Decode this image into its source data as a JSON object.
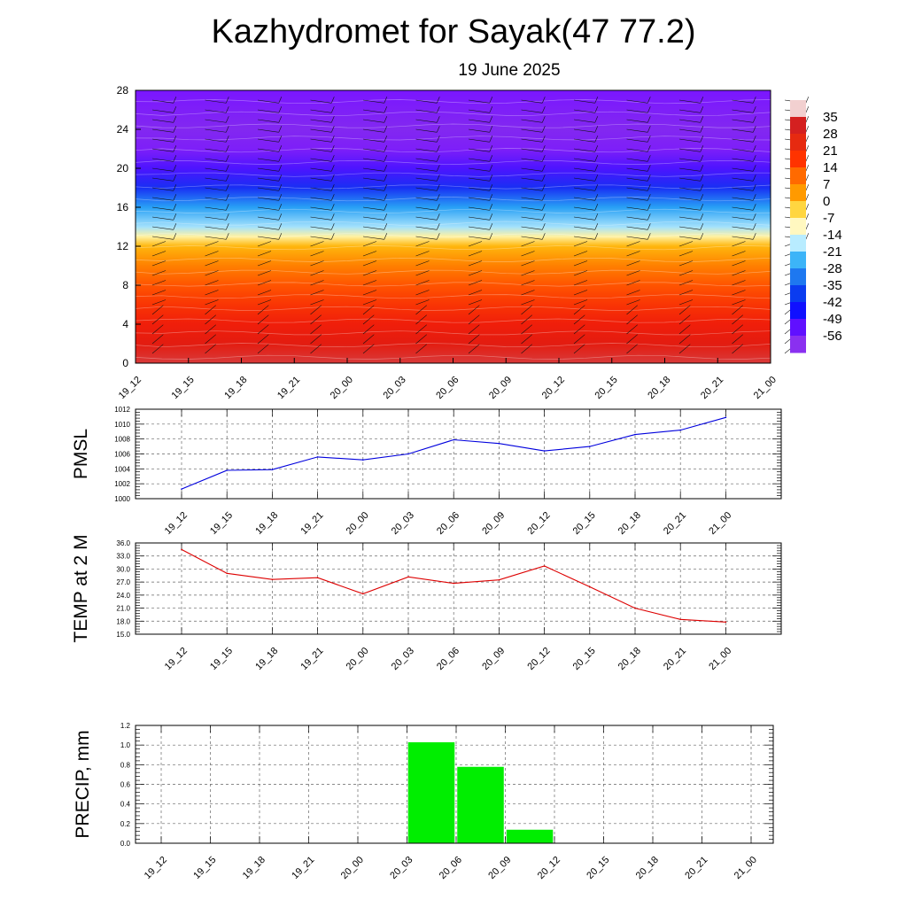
{
  "title": "Kazhydromet for Sayak(47 77.2)",
  "date": "19 June 2025",
  "colorbar": {
    "labels": [
      "35",
      "28",
      "21",
      "14",
      "7",
      "0",
      "-7",
      "-14",
      "-21",
      "-28",
      "-35",
      "-42",
      "-49",
      "-56"
    ],
    "colors": [
      "#f2d0d0",
      "#d42020",
      "#e62a10",
      "#ff3300",
      "#ff6a00",
      "#ff9a00",
      "#ffd640",
      "#fff8c0",
      "#b8ecff",
      "#3cb4f8",
      "#1e78f0",
      "#0a3cf0",
      "#1010ff",
      "#6010ff",
      "#8a30f0"
    ]
  },
  "chart_data": [
    {
      "type": "heatmap",
      "title": "",
      "xlabel": "",
      "ylabel": "",
      "x_ticks": [
        "19_12",
        "19_15",
        "19_18",
        "19_21",
        "20_00",
        "20_03",
        "20_06",
        "20_09",
        "20_12",
        "20_15",
        "20_18",
        "20_21",
        "21_00"
      ],
      "y_ticks": [
        "0",
        "4",
        "8",
        "12",
        "16",
        "20",
        "24",
        "28"
      ],
      "ylim": [
        0,
        28
      ],
      "z_range": [
        -56,
        35
      ],
      "levels": [
        0,
        2,
        4,
        6,
        8,
        10,
        12,
        13,
        14,
        16,
        18,
        20,
        22,
        24,
        26,
        28
      ],
      "temperature_by_level": [
        30,
        24,
        21,
        17,
        12,
        6,
        -1,
        -9,
        -18,
        -28,
        -40,
        -50,
        -58,
        -60,
        -58,
        -56
      ],
      "overlay": "wind barbs"
    },
    {
      "type": "line",
      "title": "",
      "ylabel": "PMSL",
      "x": [
        "19_12",
        "19_15",
        "19_18",
        "19_21",
        "20_00",
        "20_03",
        "20_06",
        "20_09",
        "20_12",
        "20_15",
        "20_18",
        "20_21",
        "21_00"
      ],
      "series": [
        {
          "values": [
            1001.3,
            1003.8,
            1003.9,
            1005.6,
            1005.2,
            1006.0,
            1007.9,
            1007.4,
            1006.4,
            1007.0,
            1008.6,
            1009.2,
            1010.9
          ]
        }
      ],
      "color": "#0000dd",
      "ylim": [
        1000,
        1012
      ],
      "y_ticks": [
        "1000",
        "1002",
        "1004",
        "1006",
        "1008",
        "1010",
        "1012"
      ],
      "grid": true
    },
    {
      "type": "line",
      "title": "",
      "ylabel": "TEMP at 2 M",
      "x": [
        "19_12",
        "19_15",
        "19_18",
        "19_21",
        "20_00",
        "20_03",
        "20_06",
        "20_09",
        "20_12",
        "20_15",
        "20_18",
        "20_21",
        "21_00"
      ],
      "series": [
        {
          "values": [
            34.5,
            29.0,
            27.6,
            28.0,
            24.3,
            28.2,
            26.7,
            27.5,
            30.7,
            25.9,
            21.0,
            18.4,
            17.8
          ]
        }
      ],
      "color": "#dd0000",
      "ylim": [
        15,
        36
      ],
      "y_ticks": [
        "15.0",
        "18.0",
        "21.0",
        "24.0",
        "27.0",
        "30.0",
        "33.0",
        "36.0"
      ],
      "grid": true
    },
    {
      "type": "bar",
      "title": "",
      "ylabel": "PRECIP, mm",
      "categories": [
        "19_12",
        "19_15",
        "19_18",
        "19_21",
        "20_00",
        "20_03",
        "20_06",
        "20_09",
        "20_12",
        "20_15",
        "20_18",
        "20_21",
        "21_00"
      ],
      "values": [
        0,
        0,
        0,
        0,
        0,
        1.03,
        0.78,
        0.14,
        0,
        0,
        0,
        0,
        0
      ],
      "color": "#00ee00",
      "ylim": [
        0,
        1.2
      ],
      "y_ticks": [
        "0.0",
        "0.2",
        "0.4",
        "0.6",
        "0.8",
        "1.0",
        "1.2"
      ],
      "grid": true
    }
  ]
}
